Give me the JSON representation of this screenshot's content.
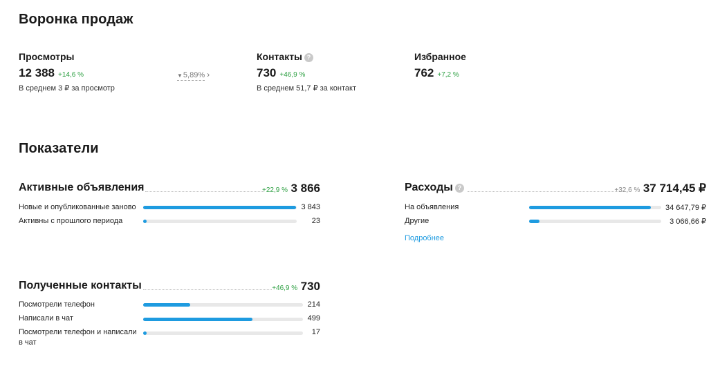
{
  "funnel": {
    "title": "Воронка продаж",
    "views": {
      "label": "Просмотры",
      "value": "12 388",
      "delta": "+14,6 %",
      "sub": "В среднем 3 ₽ за просмотр"
    },
    "conversion": {
      "value": "5,89%"
    },
    "contacts": {
      "label": "Контакты",
      "value": "730",
      "delta": "+46,9 %",
      "sub": "В среднем 51,7 ₽ за контакт"
    },
    "favorites": {
      "label": "Избранное",
      "value": "762",
      "delta": "+7,2 %"
    }
  },
  "indicators": {
    "title": "Показатели",
    "active_ads": {
      "title": "Активные объявления",
      "delta": "+22,9 %",
      "total": "3 866",
      "rows": [
        {
          "label": "Новые и опубликованные заново",
          "value": "3 843",
          "fraction": 0.994
        },
        {
          "label": "Активны с прошлого периода",
          "value": "23",
          "fraction": 0.006
        }
      ]
    },
    "expenses": {
      "title": "Расходы",
      "delta": "+32,6 %",
      "total": "37 714,45 ₽",
      "rows": [
        {
          "label": "На объявления",
          "value": "34 647,79 ₽",
          "fraction": 0.919
        },
        {
          "label": "Другие",
          "value": "3 066,66 ₽",
          "fraction": 0.081
        }
      ],
      "more_link": "Подробнее"
    },
    "contacts_received": {
      "title": "Полученные контакты",
      "delta": "+46,9 %",
      "total": "730",
      "rows": [
        {
          "label": "Посмотрели телефон",
          "value": "214",
          "fraction": 0.293
        },
        {
          "label": "Написали в чат",
          "value": "499",
          "fraction": 0.684
        },
        {
          "label_line1": "Посмотрели телефон и написали",
          "label_line2": "в чат",
          "value": "17",
          "fraction": 0.023
        }
      ]
    }
  },
  "colors": {
    "accent": "#1e9be0",
    "positive": "#2ea043",
    "track": "#e8e8e8"
  },
  "icons": {
    "help": "question-circle-icon",
    "conversion_arrow": "triangle-down-icon",
    "conversion_chevron": "chevron-right-icon"
  }
}
